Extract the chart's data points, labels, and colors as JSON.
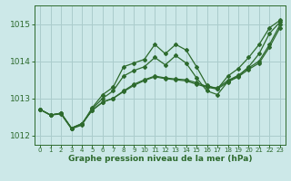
{
  "x": [
    0,
    1,
    2,
    3,
    4,
    5,
    6,
    7,
    8,
    9,
    10,
    11,
    12,
    13,
    14,
    15,
    16,
    17,
    18,
    19,
    20,
    21,
    22,
    23
  ],
  "line1": [
    1012.7,
    1012.55,
    1012.6,
    1012.2,
    1012.3,
    1012.75,
    1013.1,
    1013.3,
    1013.85,
    1013.95,
    1014.05,
    1014.45,
    1014.2,
    1014.45,
    1014.3,
    1013.85,
    1013.35,
    1013.25,
    1013.6,
    1013.8,
    1014.1,
    1014.45,
    1014.9,
    1015.1
  ],
  "line2": [
    1012.7,
    1012.55,
    1012.58,
    1012.18,
    1012.28,
    1012.72,
    1013.0,
    1013.2,
    1013.6,
    1013.75,
    1013.85,
    1014.1,
    1013.9,
    1014.15,
    1013.95,
    1013.55,
    1013.2,
    1013.1,
    1013.45,
    1013.6,
    1013.85,
    1014.2,
    1014.75,
    1015.05
  ],
  "line3": [
    1012.7,
    1012.55,
    1012.6,
    1012.2,
    1012.32,
    1012.68,
    1012.9,
    1013.0,
    1013.2,
    1013.38,
    1013.5,
    1013.6,
    1013.55,
    1013.52,
    1013.5,
    1013.42,
    1013.32,
    1013.28,
    1013.48,
    1013.62,
    1013.82,
    1014.0,
    1014.45,
    1014.98
  ],
  "line4": [
    1012.7,
    1012.55,
    1012.6,
    1012.2,
    1012.32,
    1012.68,
    1012.9,
    1013.0,
    1013.18,
    1013.35,
    1013.48,
    1013.58,
    1013.53,
    1013.5,
    1013.47,
    1013.38,
    1013.3,
    1013.25,
    1013.44,
    1013.58,
    1013.78,
    1013.95,
    1014.38,
    1014.9
  ],
  "line_color": "#2d6a2d",
  "bg_color": "#cce8e8",
  "grid_color": "#aacccc",
  "xlabel": "Graphe pression niveau de la mer (hPa)",
  "ylim": [
    1011.75,
    1015.5
  ],
  "xlim": [
    -0.5,
    23.5
  ],
  "yticks": [
    1012,
    1013,
    1014,
    1015
  ],
  "xticks": [
    0,
    1,
    2,
    3,
    4,
    5,
    6,
    7,
    8,
    9,
    10,
    11,
    12,
    13,
    14,
    15,
    16,
    17,
    18,
    19,
    20,
    21,
    22,
    23
  ]
}
